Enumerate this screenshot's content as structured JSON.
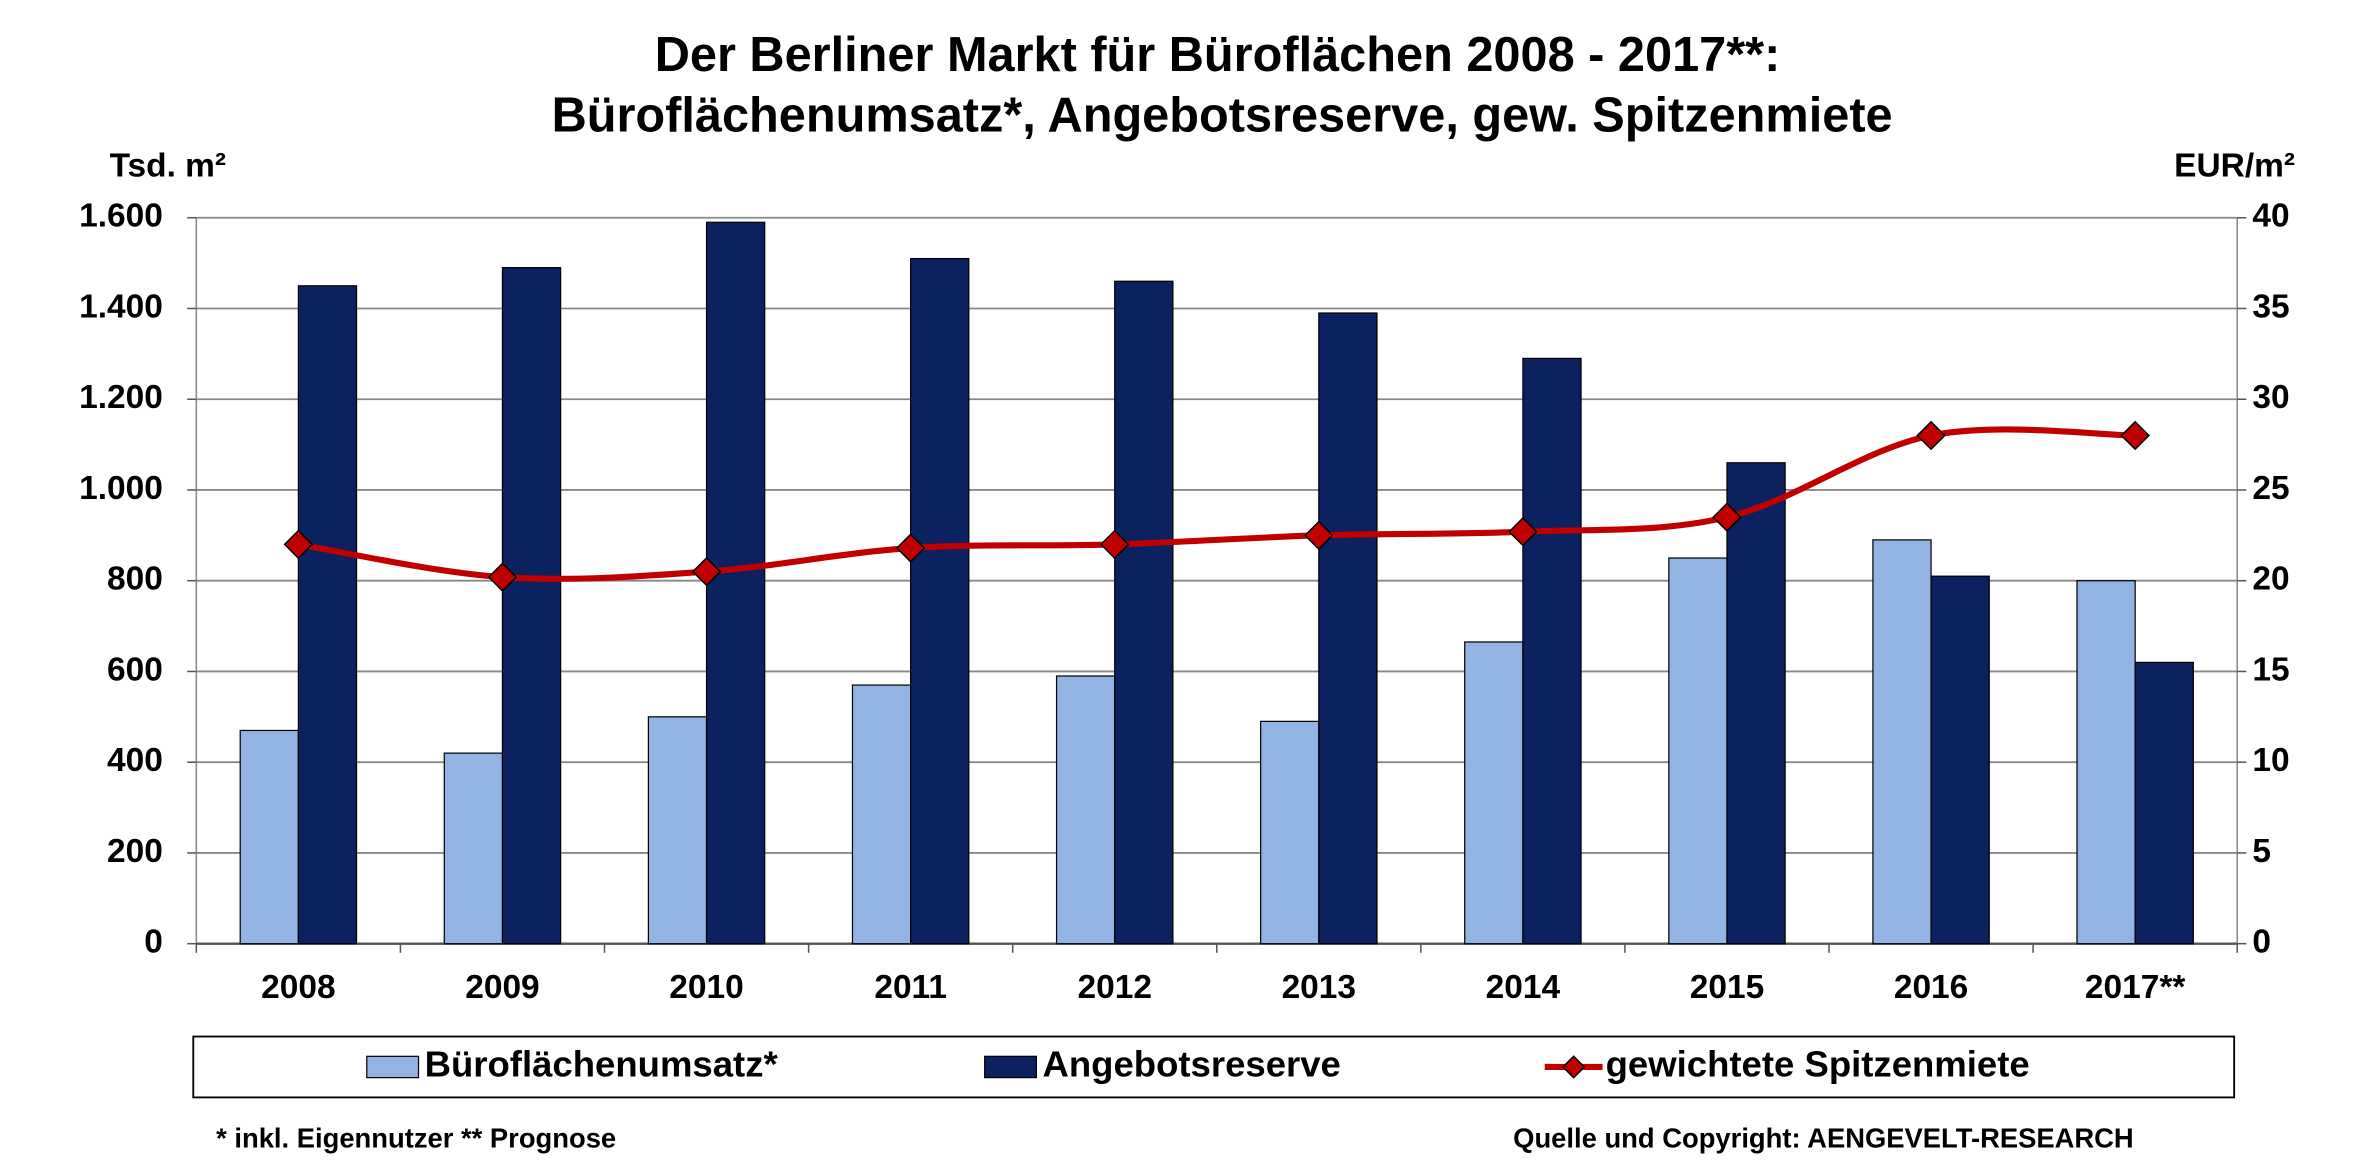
{
  "chart_data": {
    "type": "bar",
    "title": "Der Berliner Markt für Büroflächen 2008 - 2017**:",
    "subtitle": "Büroflächenumsatz*, Angebotsreserve, gew. Spitzenmiete",
    "y_label": "Tsd. m²",
    "y2_label": "EUR/m²",
    "categories": [
      "2008",
      "2009",
      "2010",
      "2011",
      "2012",
      "2013",
      "2014",
      "2015",
      "2016",
      "2017**"
    ],
    "series": [
      {
        "name": "Büroflächenumsatz*",
        "type": "bar",
        "color": "#92b4e3",
        "values": [
          470,
          420,
          500,
          570,
          590,
          490,
          665,
          850,
          890,
          800
        ]
      },
      {
        "name": "Angebotsreserve",
        "type": "bar",
        "color": "#0b2160",
        "values": [
          1450,
          1490,
          1590,
          1510,
          1460,
          1390,
          1290,
          1060,
          810,
          620
        ]
      },
      {
        "name": "gewichtete Spitzenmiete",
        "type": "line",
        "axis": "y2",
        "color": "#c00000",
        "marker_color": "#c00000",
        "values": [
          22.0,
          20.2,
          20.5,
          21.8,
          22.0,
          22.5,
          22.7,
          23.5,
          28.0,
          28.0
        ]
      }
    ],
    "ylim": [
      0,
      1600
    ],
    "yticks": [
      0,
      200,
      400,
      600,
      800,
      {
        "value": 1000,
        "label": "1.000"
      },
      {
        "value": 1200,
        "label": "1.200"
      },
      {
        "value": 1400,
        "label": "1.400"
      },
      {
        "value": 1600,
        "label": "1.600"
      }
    ],
    "y2lim": [
      0,
      40
    ],
    "y2ticks": [
      0,
      5,
      10,
      15,
      20,
      25,
      30,
      35,
      40
    ],
    "grid": true,
    "legend": "bottom",
    "footnote": "* inkl. Eigennutzer ** Prognose",
    "source": "Quelle und Copyright: AENGEVELT-RESEARCH"
  }
}
